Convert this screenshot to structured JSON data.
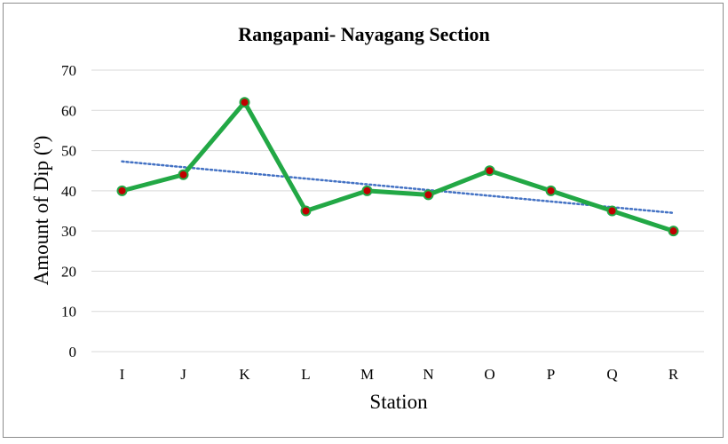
{
  "chart_data": {
    "type": "line",
    "title": "Rangapani- Nayagang Section",
    "xlabel": "Station",
    "ylabel": "Amount of  Dip (º)",
    "categories": [
      "I",
      "J",
      "K",
      "L",
      "M",
      "N",
      "O",
      "P",
      "Q",
      "R"
    ],
    "series": [
      {
        "values": [
          40,
          44,
          62,
          35,
          40,
          39,
          45,
          40,
          35,
          30
        ],
        "line_color": "#22a845",
        "marker_color": "#c00000"
      }
    ],
    "trendline": {
      "type": "linear",
      "style": "dotted",
      "color": "#4472c4",
      "start_value": 47.3,
      "end_value": 34.5
    },
    "ylim": [
      0,
      70
    ],
    "yticks": [
      0,
      10,
      20,
      30,
      40,
      50,
      60,
      70
    ],
    "grid": true,
    "legend": "none"
  }
}
